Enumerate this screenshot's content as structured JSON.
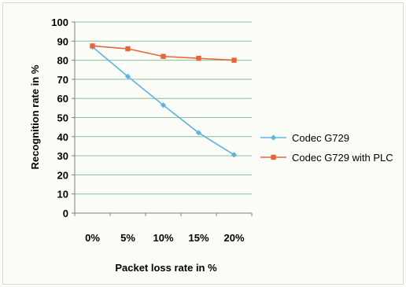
{
  "chart_data": {
    "type": "line",
    "title": "",
    "xlabel": "Packet loss rate in %",
    "ylabel": "Recognition  rate in %",
    "categories": [
      "0%",
      "5%",
      "10%",
      "15%",
      "20%"
    ],
    "ylim": [
      0,
      100
    ],
    "yticks": [
      0,
      10,
      20,
      30,
      40,
      50,
      60,
      70,
      80,
      90,
      100
    ],
    "grid": true,
    "legend_position": "right",
    "series": [
      {
        "name": "Codec G729",
        "values": [
          87,
          71.5,
          56.5,
          42,
          30.5
        ],
        "color": "#5fb3e0",
        "marker": "diamond"
      },
      {
        "name": "Codec G729 with PLC",
        "values": [
          87.5,
          86,
          82,
          81,
          80
        ],
        "color": "#e8643c",
        "marker": "square"
      }
    ]
  }
}
